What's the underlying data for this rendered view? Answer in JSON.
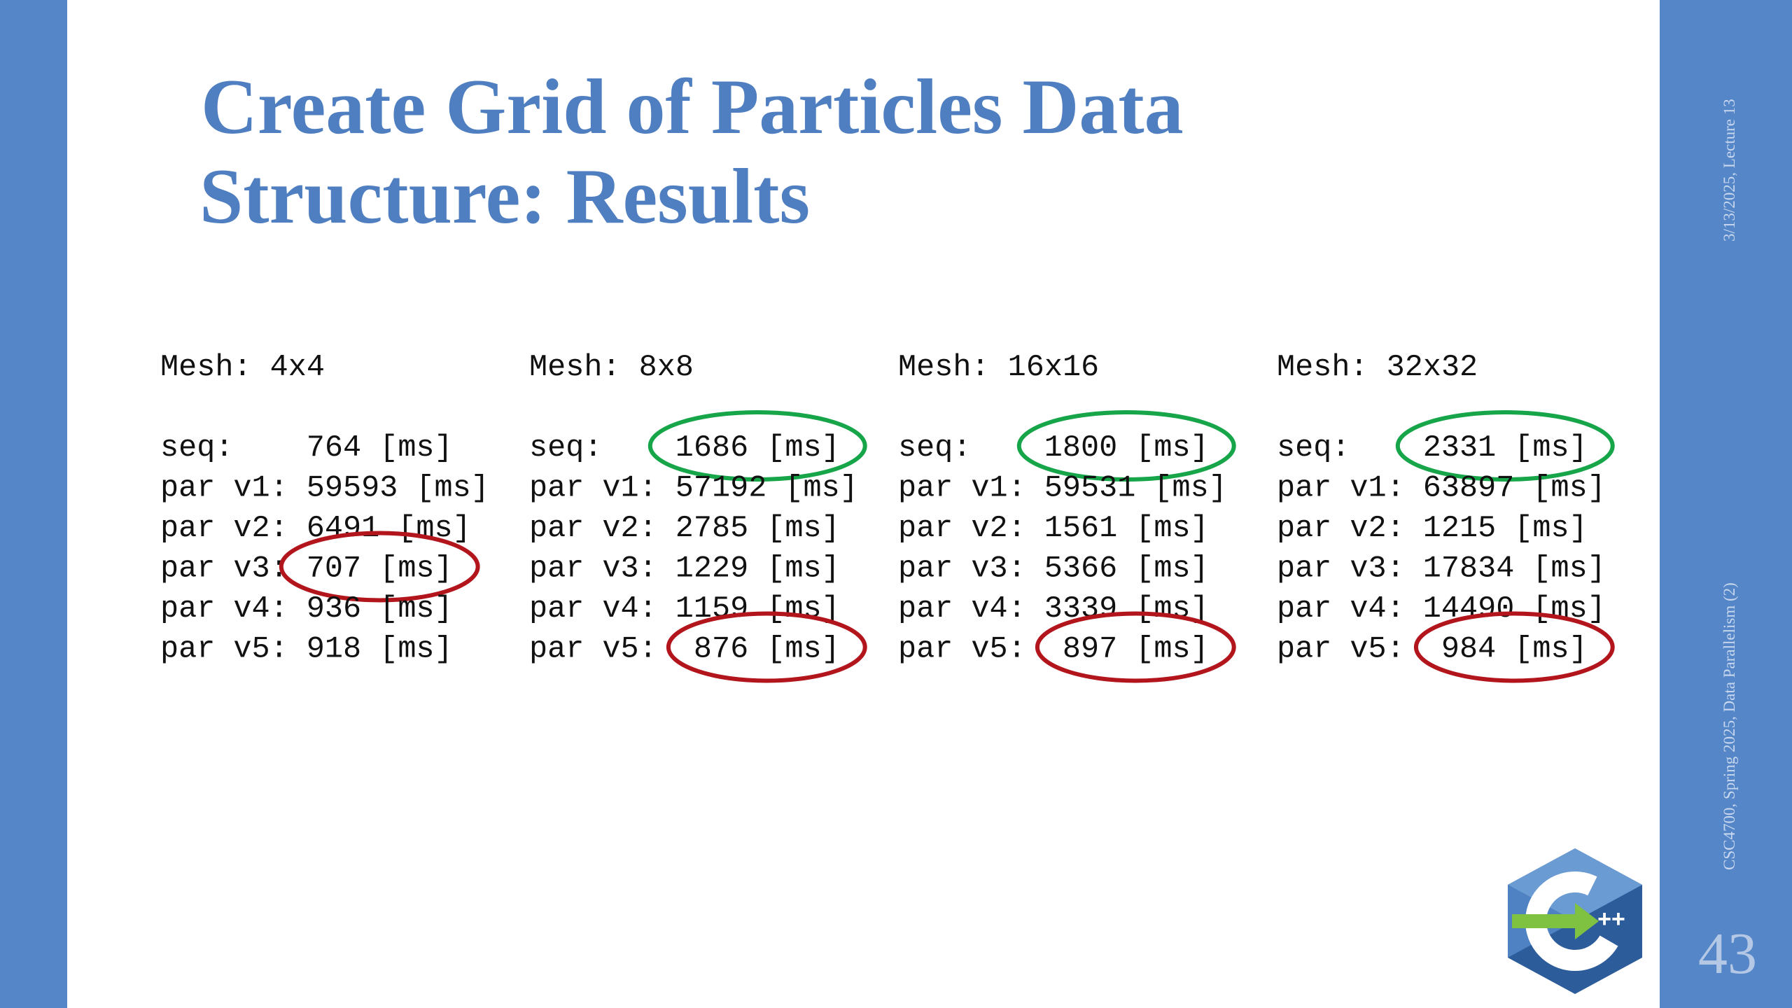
{
  "slide": {
    "title": [
      "Create Grid of Particles Data",
      "Structure: Results"
    ],
    "date": "3/13/2025, Lecture 13",
    "footer": "CSC4700, Spring 2025, Data Parallelism (2)",
    "page_number": "43",
    "meshes": [
      {
        "heading": "Mesh: 4x4",
        "rows": [
          {
            "label": "seq:",
            "value": "764 [ms]"
          },
          {
            "label": "par v1:",
            "value": "59593 [ms]"
          },
          {
            "label": "par v2:",
            "value": "6491 [ms]"
          },
          {
            "label": "par v3:",
            "value": "707 [ms]",
            "circle": "#b3151c"
          },
          {
            "label": "par v4:",
            "value": "936 [ms]"
          },
          {
            "label": "par v5:",
            "value": "918 [ms]"
          }
        ]
      },
      {
        "heading": "Mesh: 8x8",
        "rows": [
          {
            "label": "seq:",
            "value": "1686 [ms]",
            "circle": "#17a54a"
          },
          {
            "label": "par v1:",
            "value": "57192 [ms]"
          },
          {
            "label": "par v2:",
            "value": "2785 [ms]"
          },
          {
            "label": "par v3:",
            "value": "1229 [ms]"
          },
          {
            "label": "par v4:",
            "value": "1159 [ms]"
          },
          {
            "label": "par v5:",
            "value": " 876 [ms]",
            "circle": "#b3151c"
          }
        ]
      },
      {
        "heading": "Mesh: 16x16",
        "rows": [
          {
            "label": "seq:",
            "value": "1800 [ms]",
            "circle": "#17a54a"
          },
          {
            "label": "par v1:",
            "value": "59531 [ms]"
          },
          {
            "label": "par v2:",
            "value": "1561 [ms]"
          },
          {
            "label": "par v3:",
            "value": "5366 [ms]"
          },
          {
            "label": "par v4:",
            "value": "3339 [ms]"
          },
          {
            "label": "par v5:",
            "value": " 897 [ms]",
            "circle": "#b3151c"
          }
        ]
      },
      {
        "heading": "Mesh: 32x32",
        "rows": [
          {
            "label": "seq:",
            "value": "2331 [ms]",
            "circle": "#17a54a"
          },
          {
            "label": "par v1:",
            "value": "63897 [ms]"
          },
          {
            "label": "par v2:",
            "value": "1215 [ms]"
          },
          {
            "label": "par v3:",
            "value": "17834 [ms]"
          },
          {
            "label": "par v4:",
            "value": "14490 [ms]"
          },
          {
            "label": "par v5:",
            "value": " 984 [ms]",
            "circle": "#b3151c"
          }
        ]
      }
    ]
  }
}
